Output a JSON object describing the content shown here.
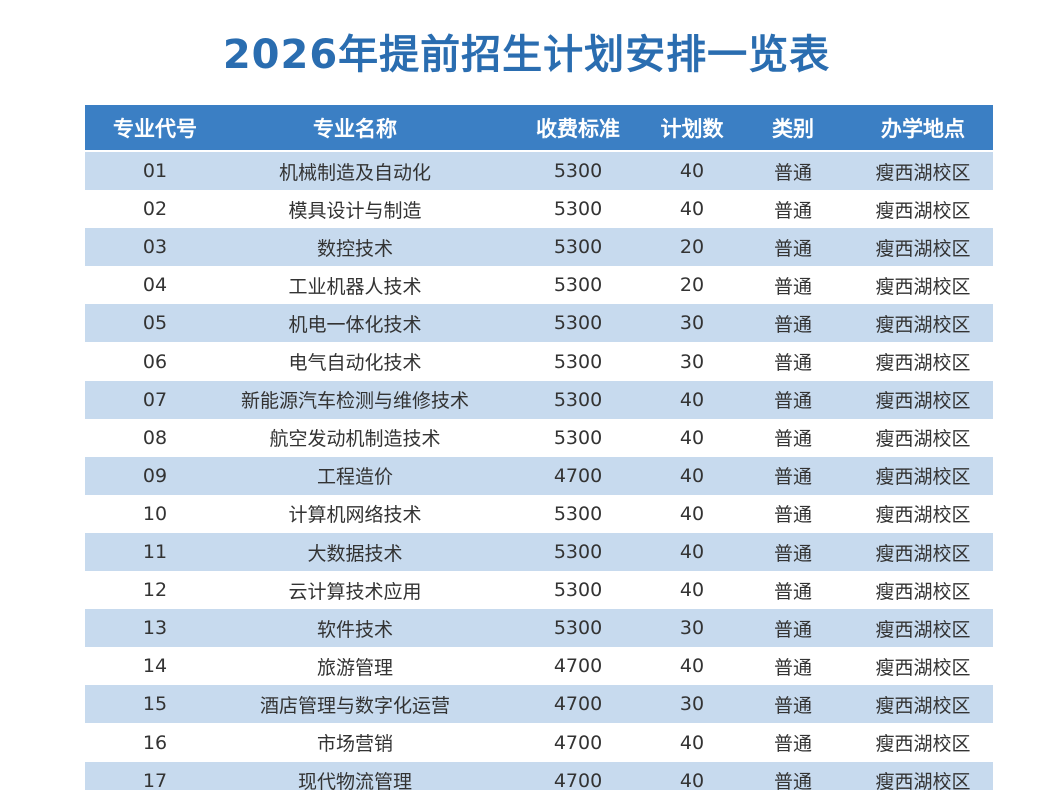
{
  "title": "2026年提前招生计划安排一览表",
  "table": {
    "header": [
      "专业代号",
      "专业名称",
      "收费标准",
      "计划数",
      "类别",
      "办学地点"
    ],
    "rows": [
      [
        "01",
        "机械制造及自动化",
        5300,
        40,
        "普通",
        "瘦西湖校区"
      ],
      [
        "02",
        "模具设计与制造",
        5300,
        40,
        "普通",
        "瘦西湖校区"
      ],
      [
        "03",
        "数控技术",
        5300,
        20,
        "普通",
        "瘦西湖校区"
      ],
      [
        "04",
        "工业机器人技术",
        5300,
        20,
        "普通",
        "瘦西湖校区"
      ],
      [
        "05",
        "机电一体化技术",
        5300,
        30,
        "普通",
        "瘦西湖校区"
      ],
      [
        "06",
        "电气自动化技术",
        5300,
        30,
        "普通",
        "瘦西湖校区"
      ],
      [
        "07",
        "新能源汽车检测与维修技术",
        5300,
        40,
        "普通",
        "瘦西湖校区"
      ],
      [
        "08",
        "航空发动机制造技术",
        5300,
        40,
        "普通",
        "瘦西湖校区"
      ],
      [
        "09",
        "工程造价",
        4700,
        40,
        "普通",
        "瘦西湖校区"
      ],
      [
        "10",
        "计算机网络技术",
        5300,
        40,
        "普通",
        "瘦西湖校区"
      ],
      [
        "11",
        "大数据技术",
        5300,
        40,
        "普通",
        "瘦西湖校区"
      ],
      [
        "12",
        "云计算技术应用",
        5300,
        40,
        "普通",
        "瘦西湖校区"
      ],
      [
        "13",
        "软件技术",
        5300,
        30,
        "普通",
        "瘦西湖校区"
      ],
      [
        "14",
        "旅游管理",
        4700,
        40,
        "普通",
        "瘦西湖校区"
      ],
      [
        "15",
        "酒店管理与数字化运营",
        4700,
        30,
        "普通",
        "瘦西湖校区"
      ],
      [
        "16",
        "市场营销",
        4700,
        40,
        "普通",
        "瘦西湖校区"
      ],
      [
        "17",
        "现代物流管理",
        4700,
        40,
        "普通",
        "瘦西湖校区"
      ]
    ]
  }
}
